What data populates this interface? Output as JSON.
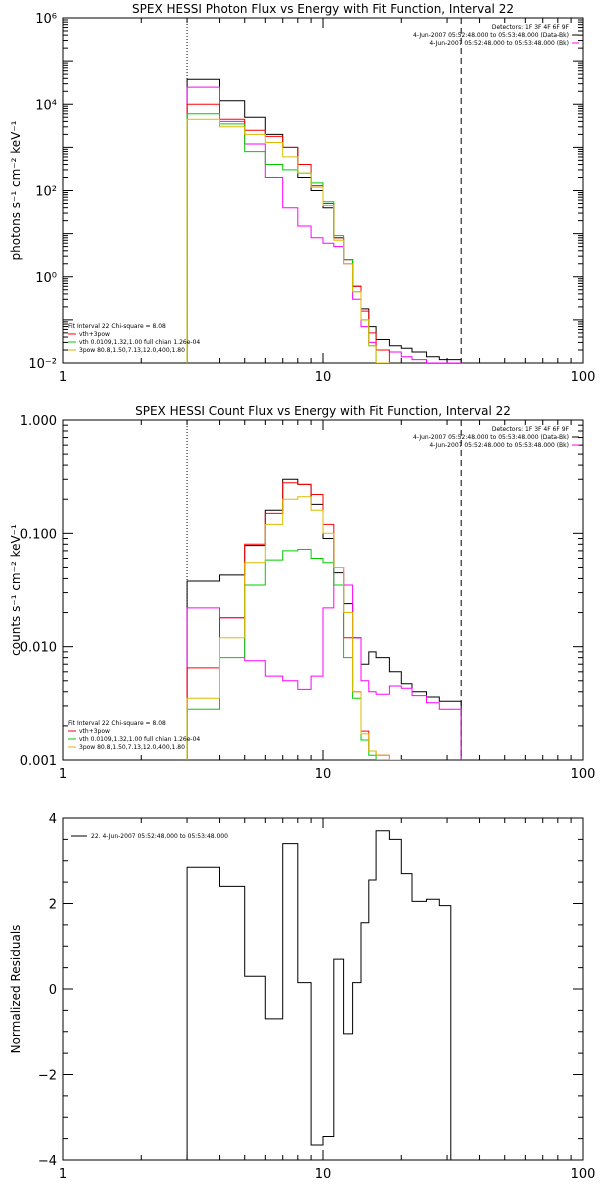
{
  "chart_data": [
    {
      "type": "line",
      "title": "SPEX HESSI Photon Flux vs Energy with Fit Function, Interval 22",
      "ylabel": "photons s⁻¹ cm⁻² keV⁻¹",
      "xscale": "log",
      "yscale": "log",
      "xlim": [
        1,
        100
      ],
      "ylim": [
        0.01,
        1000000
      ],
      "x_ticks": [
        1,
        10,
        100
      ],
      "x_tick_labels": [
        "1",
        "10",
        "100"
      ],
      "y_ticks": [
        0.01,
        1,
        100,
        10000,
        1000000
      ],
      "y_tick_labels": [
        "10⁻²",
        "10⁰",
        "10²",
        "10⁴",
        "10⁶"
      ],
      "vlines": [
        {
          "x": 3.0,
          "style": "dotted"
        },
        {
          "x": 34.0,
          "style": "dashed"
        }
      ],
      "legend_top": [
        "Detectors: 1F 3F 4F 6F 9F",
        "4-Jun-2007 05:52:48.000 to 05:53:48.000 (Data-Bk)",
        "4-Jun-2007 05:52:48.000 to 05:53:48.000 (Bk)"
      ],
      "legend_bottom": [
        "Fit Interval 22   Chi-square = 8.08",
        "vth+3pow",
        "vth 0.0109,1.32,1.00  full chian 1.26e-04",
        "3pow 80.8,1.50,7.13,12.0,400,1.80"
      ],
      "edges": [
        3.0,
        4.0,
        5.0,
        6.0,
        7.0,
        8.0,
        9.0,
        10.0,
        11.0,
        12.0,
        13.0,
        14.0,
        15.0,
        16.0,
        18.0,
        20.0,
        22.0,
        25.0,
        28.0,
        34.0
      ],
      "series": [
        {
          "name": "4-Jun-2007 05:52:48.000 to 05:53:48.000 (Data-Bk)",
          "color": "#000000",
          "values": [
            38000,
            12000,
            5000,
            2000,
            1000,
            200,
            100,
            40,
            8,
            2.5,
            0.6,
            0.18,
            0.07,
            0.035,
            0.025,
            0.022,
            0.018,
            0.014,
            0.012
          ]
        },
        {
          "name": "4-Jun-2007 05:52:48.000 to 05:53:48.000 (Bk)",
          "color": "#ff00ff",
          "values": [
            25000,
            4000,
            1200,
            200,
            40,
            15,
            8,
            6,
            5,
            2,
            0.3,
            0.07,
            0.03,
            0.02,
            0.018,
            0.014,
            0.012,
            0.01,
            0.01
          ]
        },
        {
          "name": "vth+3pow",
          "color": "#ff0000",
          "values": [
            10000,
            4500,
            2500,
            1800,
            1000,
            400,
            130,
            50,
            8,
            2.5,
            0.6,
            0.16,
            0.05,
            0.02,
            0.008,
            0.008,
            0.008,
            0.008,
            0.008
          ]
        },
        {
          "name": "vth 0.0109,1.32,1.00  full chian 1.26e-04",
          "color": "#00cc00",
          "values": [
            6000,
            3500,
            800,
            400,
            300,
            250,
            150,
            55,
            9,
            2.5,
            0.45,
            0.1,
            0.025,
            0.01,
            0.008,
            0.008,
            0.008,
            0.008,
            0.008
          ]
        },
        {
          "name": "3pow 80.8,1.50,7.13,12.0,400,1.80",
          "color": "#ddbb00",
          "values": [
            4500,
            3000,
            2000,
            1300,
            600,
            250,
            120,
            45,
            7,
            2,
            0.45,
            0.1,
            0.025,
            0.01,
            0.008,
            0.008,
            0.008,
            0.008,
            0.008
          ]
        }
      ]
    },
    {
      "type": "line",
      "title": "SPEX HESSI Count Flux vs Energy with Fit Function, Interval 22",
      "ylabel": "counts s⁻¹ cm⁻² keV⁻¹",
      "xscale": "log",
      "yscale": "log",
      "xlim": [
        1,
        100
      ],
      "ylim": [
        0.001,
        1.0
      ],
      "x_ticks": [
        1,
        10,
        100
      ],
      "x_tick_labels": [
        "1",
        "10",
        "100"
      ],
      "y_ticks": [
        0.001,
        0.01,
        0.1,
        1.0
      ],
      "y_tick_labels": [
        "0.001",
        "0.010",
        "0.100",
        "1.000"
      ],
      "vlines": [
        {
          "x": 3.0,
          "style": "dotted"
        },
        {
          "x": 34.0,
          "style": "dashed"
        }
      ],
      "legend_top": [
        "Detectors: 1F 3F 4F 6F 9F",
        "4-Jun-2007 05:52:48.000 to 05:53:48.000 (Data-Bk)",
        "4-Jun-2007 05:52:48.000 to 05:53:48.000 (Bk)"
      ],
      "legend_bottom": [
        "Fit Interval 22   Chi-square = 8.08",
        "vth+3pow",
        "vth 0.0109,1.32,1.00  full chian 1.26e-04",
        "3pow 80.8,1.50,7.13,12.0,400,1.80"
      ],
      "edges": [
        3.0,
        4.0,
        5.0,
        6.0,
        7.0,
        8.0,
        9.0,
        10.0,
        11.0,
        12.0,
        13.0,
        14.0,
        15.0,
        16.0,
        18.0,
        20.0,
        22.0,
        25.0,
        28.0,
        34.0
      ],
      "series": [
        {
          "name": "4-Jun-2007 05:52:48.000 to 05:53:48.000 (Data-Bk)",
          "color": "#000000",
          "values": [
            0.038,
            0.043,
            0.078,
            0.16,
            0.3,
            0.27,
            0.18,
            0.09,
            0.045,
            0.024,
            0.012,
            0.007,
            0.009,
            0.008,
            0.006,
            0.0047,
            0.004,
            0.0036,
            0.0033
          ]
        },
        {
          "name": "4-Jun-2007 05:52:48.000 to 05:53:48.000 (Bk)",
          "color": "#ff00ff",
          "values": [
            0.022,
            0.018,
            0.0075,
            0.0055,
            0.005,
            0.0042,
            0.0055,
            0.022,
            0.05,
            0.035,
            0.012,
            0.005,
            0.004,
            0.0038,
            0.0045,
            0.0043,
            0.0037,
            0.0032,
            0.0028
          ]
        },
        {
          "name": "vth+3pow",
          "color": "#ff0000",
          "values": [
            0.0065,
            0.018,
            0.08,
            0.15,
            0.28,
            0.27,
            0.22,
            0.12,
            0.05,
            0.012,
            0.004,
            0.0018,
            0.0012,
            0.0011,
            0.001,
            0.0009,
            0.0009,
            0.0009,
            0.0009
          ]
        },
        {
          "name": "vth 0.0109,1.32,1.00  full chian 1.26e-04",
          "color": "#00cc00",
          "values": [
            0.0028,
            0.008,
            0.035,
            0.058,
            0.07,
            0.072,
            0.06,
            0.055,
            0.035,
            0.008,
            0.0035,
            0.0015,
            0.0011,
            0.001,
            0.0009,
            0.0009,
            0.0009,
            0.0009,
            0.0009
          ]
        },
        {
          "name": "3pow 80.8,1.50,7.13,12.0,400,1.80",
          "color": "#ddbb00",
          "values": [
            0.0035,
            0.012,
            0.055,
            0.12,
            0.2,
            0.21,
            0.16,
            0.1,
            0.05,
            0.02,
            0.004,
            0.0017,
            0.0012,
            0.0011,
            0.001,
            0.0009,
            0.0009,
            0.0009,
            0.0009
          ]
        }
      ]
    },
    {
      "type": "line",
      "ylabel": "Normalized Residuals",
      "xscale": "log",
      "yscale": "linear",
      "xlim": [
        1,
        100
      ],
      "ylim": [
        -4,
        4
      ],
      "x_ticks": [
        1,
        10,
        100
      ],
      "x_tick_labels": [
        "1",
        "10",
        "100"
      ],
      "y_ticks": [
        -4,
        -2,
        0,
        2,
        4
      ],
      "y_tick_labels": [
        "−4",
        "−2",
        "0",
        "2",
        "4"
      ],
      "legend_top": [
        "22. 4-Jun-2007 05:52:48.000 to 05:53:48.000"
      ],
      "edges": [
        3.0,
        4.0,
        5.0,
        6.0,
        7.0,
        8.0,
        9.0,
        10.0,
        11.0,
        12.0,
        13.0,
        14.0,
        15.0,
        16.0,
        18.0,
        20.0,
        22.0,
        25.0,
        28.0,
        31.0,
        34.0
      ],
      "series": [
        {
          "name": "22. 4-Jun-2007 05:52:48.000 to 05:53:48.000",
          "color": "#000000",
          "values": [
            2.85,
            2.4,
            0.3,
            -0.7,
            3.4,
            0.15,
            -3.65,
            -3.45,
            0.7,
            -1.05,
            0.15,
            1.55,
            2.55,
            3.7,
            3.5,
            2.7,
            2.05,
            2.1,
            1.95
          ]
        }
      ]
    }
  ]
}
